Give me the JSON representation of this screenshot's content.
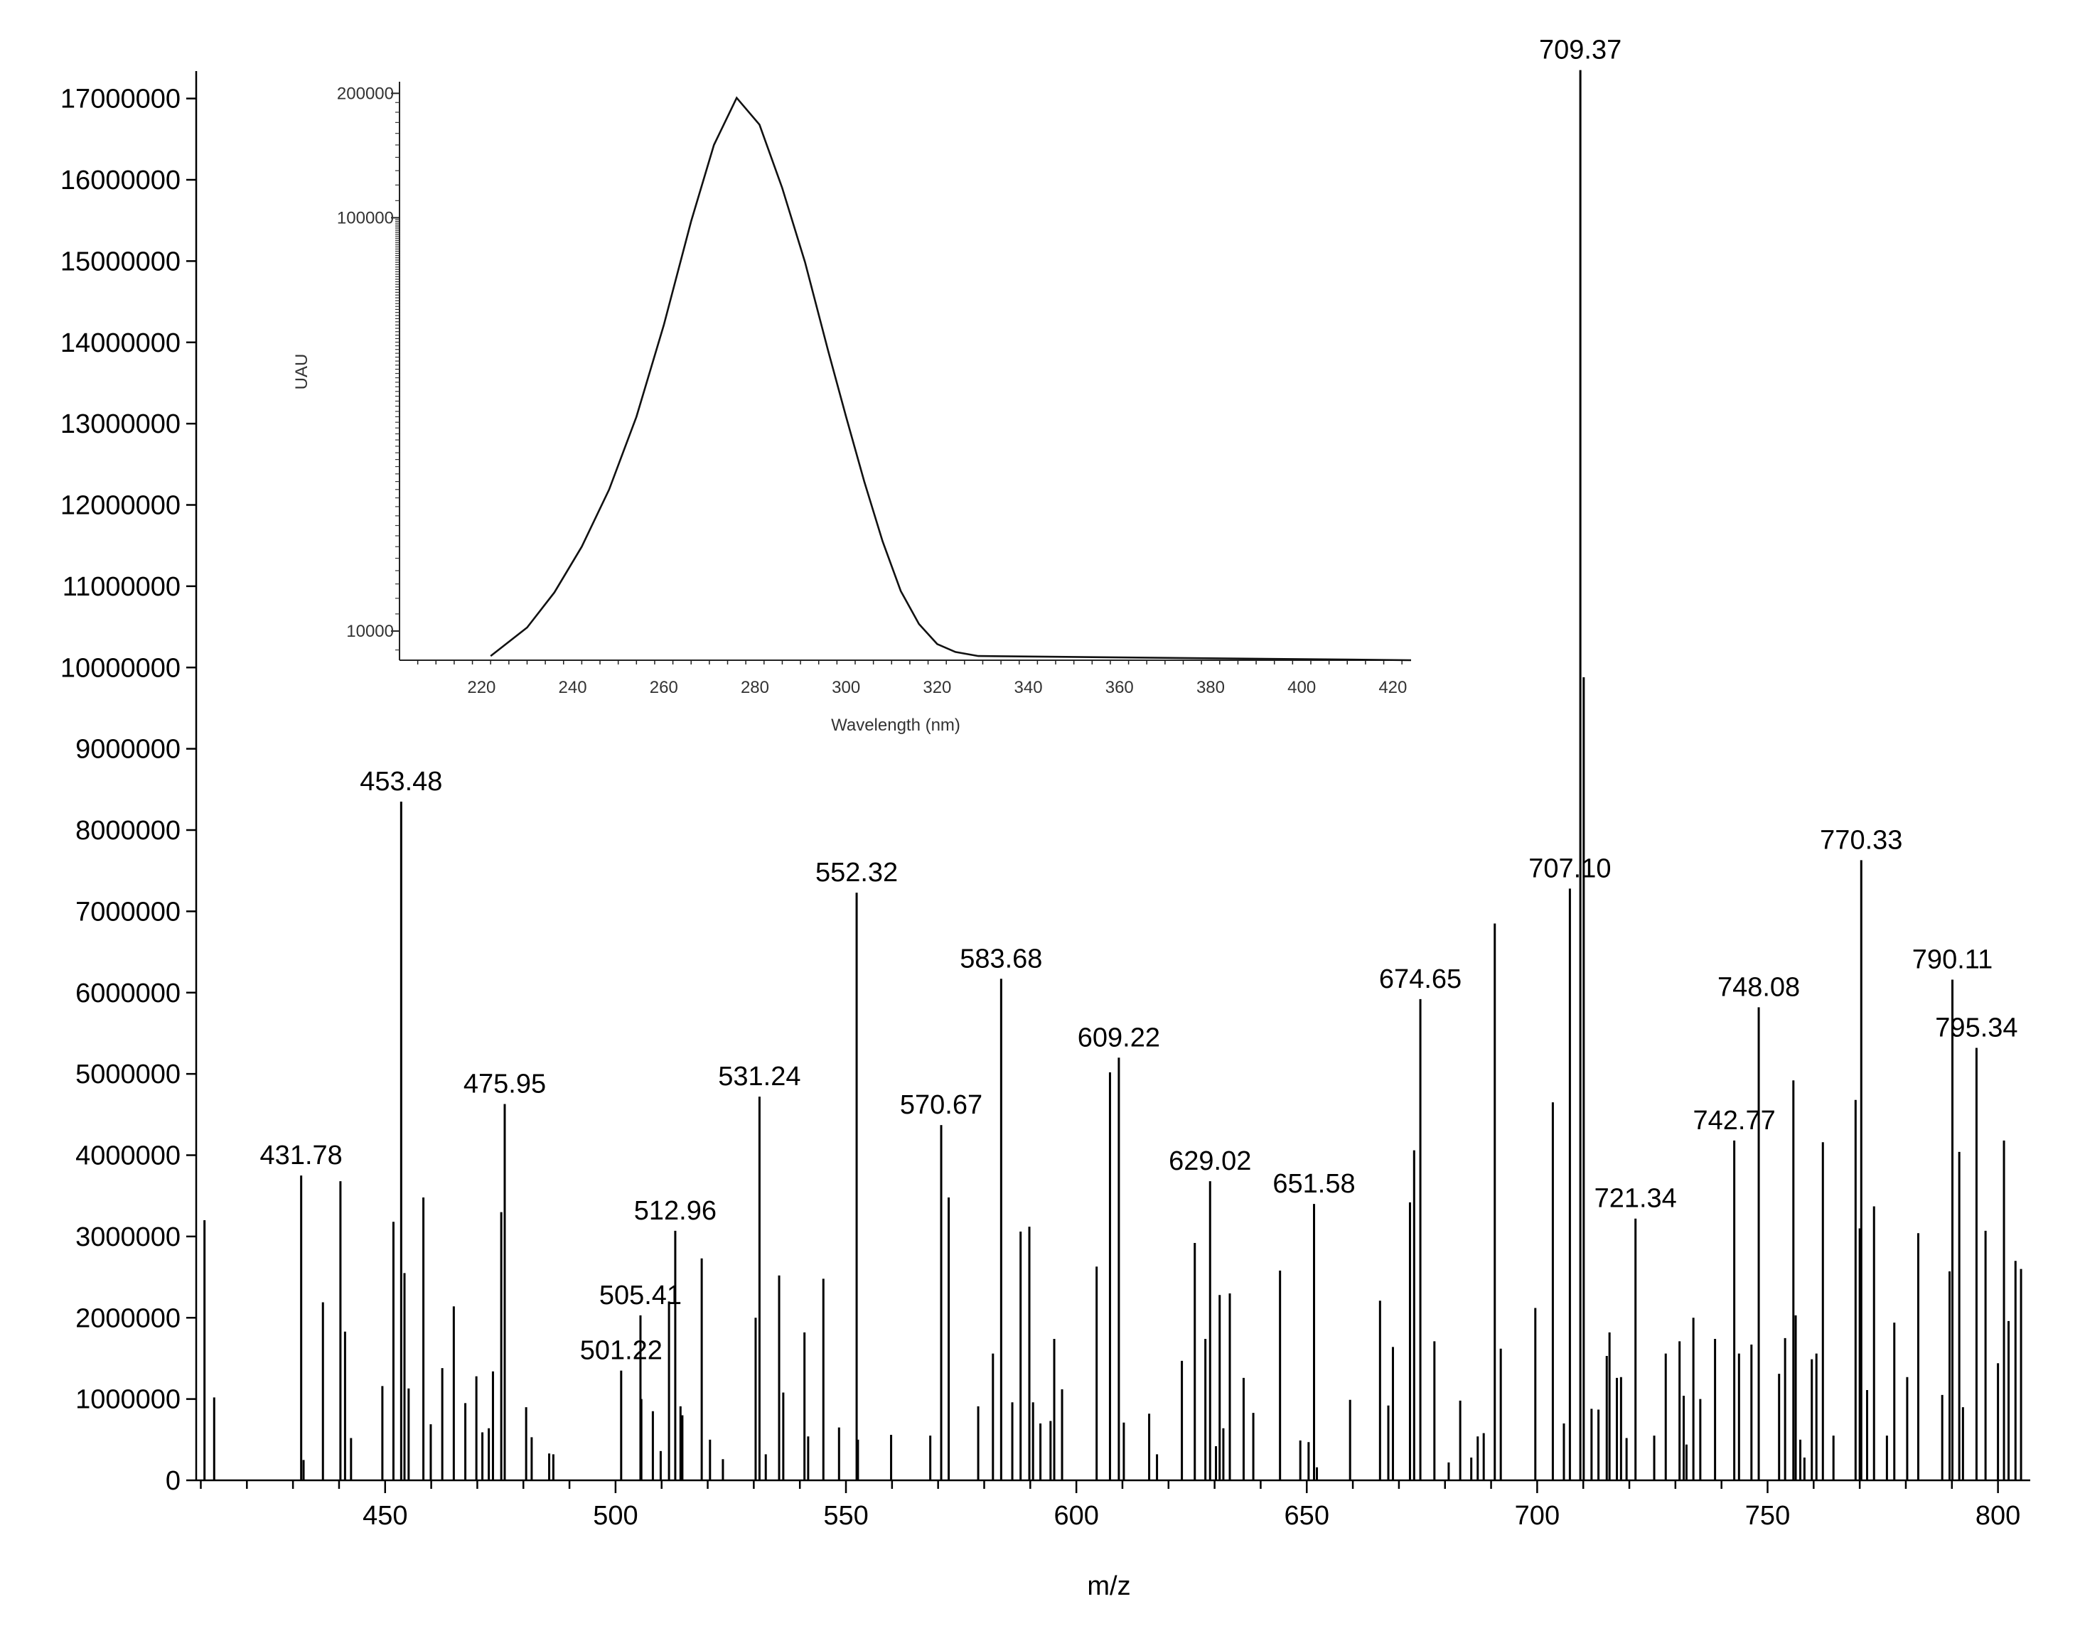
{
  "chart_data": [
    {
      "type": "bar",
      "kind": "mass-spectrum",
      "xlabel": "m/z",
      "ylabel": "",
      "xlim": [
        409,
        807
      ],
      "ylim": [
        0,
        17600000
      ],
      "x_ticks": [
        "450",
        "500",
        "550",
        "600",
        "650",
        "700",
        "750",
        "800"
      ],
      "y_ticks": [
        "0",
        "1000000",
        "2000000",
        "3000000",
        "4000000",
        "5000000",
        "6000000",
        "7000000",
        "8000000",
        "9000000",
        "10000000",
        "11000000",
        "12000000",
        "13000000",
        "14000000",
        "15000000",
        "16000000",
        "17000000"
      ],
      "labeled_peaks": [
        {
          "mz": 431.78,
          "intensity": 3750000,
          "label": "431.78"
        },
        {
          "mz": 453.48,
          "intensity": 8350000,
          "label": "453.48"
        },
        {
          "mz": 475.95,
          "intensity": 4630000,
          "label": "475.95"
        },
        {
          "mz": 501.22,
          "intensity": 1350000,
          "label": "501.22"
        },
        {
          "mz": 505.41,
          "intensity": 2030000,
          "label": "505.41"
        },
        {
          "mz": 512.96,
          "intensity": 3070000,
          "label": "512.96"
        },
        {
          "mz": 531.24,
          "intensity": 4720000,
          "label": "531.24"
        },
        {
          "mz": 552.32,
          "intensity": 7230000,
          "label": "552.32"
        },
        {
          "mz": 570.67,
          "intensity": 4370000,
          "label": "570.67"
        },
        {
          "mz": 583.68,
          "intensity": 6170000,
          "label": "583.68"
        },
        {
          "mz": 609.22,
          "intensity": 5200000,
          "label": "609.22"
        },
        {
          "mz": 629.02,
          "intensity": 3680000,
          "label": "629.02"
        },
        {
          "mz": 651.58,
          "intensity": 3400000,
          "label": "651.58"
        },
        {
          "mz": 674.65,
          "intensity": 5920000,
          "label": "674.65"
        },
        {
          "mz": 707.1,
          "intensity": 7280000,
          "label": "707.10"
        },
        {
          "mz": 709.37,
          "intensity": 17350000,
          "label": "709.37"
        },
        {
          "mz": 721.34,
          "intensity": 3220000,
          "label": "721.34"
        },
        {
          "mz": 742.77,
          "intensity": 4180000,
          "label": "742.77"
        },
        {
          "mz": 748.08,
          "intensity": 5820000,
          "label": "748.08"
        },
        {
          "mz": 770.33,
          "intensity": 7630000,
          "label": "770.33"
        },
        {
          "mz": 790.11,
          "intensity": 6160000,
          "label": "790.11"
        },
        {
          "mz": 795.34,
          "intensity": 5320000,
          "label": "795.34"
        }
      ],
      "other_peaks": [
        [
          410.8,
          3200000
        ],
        [
          412.9,
          1020000
        ],
        [
          432.3,
          250000
        ],
        [
          436.5,
          2190000
        ],
        [
          440.3,
          3680000
        ],
        [
          441.3,
          1830000
        ],
        [
          442.6,
          520000
        ],
        [
          449.4,
          1160000
        ],
        [
          451.8,
          3180000
        ],
        [
          454.2,
          2550000
        ],
        [
          455.1,
          1130000
        ],
        [
          458.3,
          3480000
        ],
        [
          459.9,
          690000
        ],
        [
          462.4,
          1380000
        ],
        [
          464.9,
          2140000
        ],
        [
          467.4,
          950000
        ],
        [
          469.8,
          1280000
        ],
        [
          471.1,
          590000
        ],
        [
          472.5,
          640000
        ],
        [
          473.4,
          1340000
        ],
        [
          475.2,
          3300000
        ],
        [
          480.6,
          900000
        ],
        [
          481.8,
          530000
        ],
        [
          485.6,
          330000
        ],
        [
          486.5,
          320000
        ],
        [
          505.6,
          1000000
        ],
        [
          508.1,
          850000
        ],
        [
          509.8,
          360000
        ],
        [
          511.6,
          2200000
        ],
        [
          514.1,
          910000
        ],
        [
          514.5,
          800000
        ],
        [
          518.7,
          2730000
        ],
        [
          520.5,
          500000
        ],
        [
          523.3,
          260000
        ],
        [
          530.4,
          2000000
        ],
        [
          532.6,
          320000
        ],
        [
          535.5,
          2520000
        ],
        [
          536.4,
          1080000
        ],
        [
          541.0,
          1820000
        ],
        [
          541.8,
          540000
        ],
        [
          545.1,
          2480000
        ],
        [
          548.5,
          650000
        ],
        [
          552.6,
          500000
        ],
        [
          559.8,
          560000
        ],
        [
          568.3,
          550000
        ],
        [
          572.3,
          3480000
        ],
        [
          578.7,
          910000
        ],
        [
          581.9,
          1560000
        ],
        [
          586.1,
          960000
        ],
        [
          587.9,
          3060000
        ],
        [
          589.8,
          3120000
        ],
        [
          590.6,
          960000
        ],
        [
          592.2,
          700000
        ],
        [
          594.4,
          730000
        ],
        [
          595.2,
          1740000
        ],
        [
          596.9,
          1120000
        ],
        [
          604.4,
          2630000
        ],
        [
          607.3,
          5020000
        ],
        [
          610.3,
          710000
        ],
        [
          615.8,
          820000
        ],
        [
          617.5,
          320000
        ],
        [
          622.9,
          1470000
        ],
        [
          625.7,
          2920000
        ],
        [
          628.0,
          1740000
        ],
        [
          630.3,
          420000
        ],
        [
          631.1,
          2280000
        ],
        [
          631.9,
          640000
        ],
        [
          633.3,
          2300000
        ],
        [
          636.3,
          1260000
        ],
        [
          638.4,
          830000
        ],
        [
          644.2,
          2580000
        ],
        [
          648.6,
          490000
        ],
        [
          650.4,
          470000
        ],
        [
          652.2,
          160000
        ],
        [
          659.4,
          990000
        ],
        [
          665.9,
          2210000
        ],
        [
          667.7,
          920000
        ],
        [
          668.7,
          1640000
        ],
        [
          672.4,
          3420000
        ],
        [
          673.3,
          4060000
        ],
        [
          677.7,
          1710000
        ],
        [
          680.8,
          220000
        ],
        [
          683.3,
          980000
        ],
        [
          685.7,
          280000
        ],
        [
          687.1,
          540000
        ],
        [
          688.4,
          580000
        ],
        [
          690.8,
          6850000
        ],
        [
          692.1,
          1620000
        ],
        [
          699.6,
          2120000
        ],
        [
          703.4,
          4650000
        ],
        [
          705.8,
          700000
        ],
        [
          710.1,
          9880000
        ],
        [
          711.8,
          880000
        ],
        [
          713.3,
          870000
        ],
        [
          715.1,
          1530000
        ],
        [
          715.7,
          1820000
        ],
        [
          717.3,
          1260000
        ],
        [
          718.2,
          1270000
        ],
        [
          719.4,
          520000
        ],
        [
          725.4,
          550000
        ],
        [
          727.9,
          1560000
        ],
        [
          730.9,
          1710000
        ],
        [
          731.8,
          1040000
        ],
        [
          732.4,
          440000
        ],
        [
          733.9,
          2000000
        ],
        [
          735.4,
          1000000
        ],
        [
          738.6,
          1740000
        ],
        [
          743.8,
          1560000
        ],
        [
          746.5,
          1670000
        ],
        [
          752.5,
          1310000
        ],
        [
          753.8,
          1750000
        ],
        [
          755.6,
          4920000
        ],
        [
          756.1,
          2030000
        ],
        [
          757.1,
          500000
        ],
        [
          758.0,
          280000
        ],
        [
          759.6,
          1490000
        ],
        [
          760.6,
          1560000
        ],
        [
          762.0,
          4160000
        ],
        [
          764.3,
          550000
        ],
        [
          769.1,
          4680000
        ],
        [
          770.0,
          3100000
        ],
        [
          771.6,
          1110000
        ],
        [
          773.1,
          3370000
        ],
        [
          775.9,
          550000
        ],
        [
          777.5,
          1940000
        ],
        [
          780.3,
          1270000
        ],
        [
          782.7,
          3040000
        ],
        [
          787.9,
          1050000
        ],
        [
          789.5,
          2570000
        ],
        [
          791.6,
          4040000
        ],
        [
          792.4,
          900000
        ],
        [
          797.3,
          3070000
        ],
        [
          800.0,
          1440000
        ],
        [
          801.3,
          4180000
        ],
        [
          802.3,
          1960000
        ],
        [
          803.8,
          2700000
        ],
        [
          805.0,
          2600000
        ]
      ]
    },
    {
      "type": "line",
      "kind": "uv-spectrum-inset",
      "xlabel": "Wavelength (nm)",
      "ylabel": "UAU",
      "xlim": [
        202,
        424
      ],
      "y_scale": "log",
      "ylim": [
        8500,
        210000
      ],
      "x_ticks": [
        "220",
        "240",
        "260",
        "280",
        "300",
        "320",
        "340",
        "360",
        "380",
        "400",
        "420"
      ],
      "y_ticks": [
        {
          "value": 10000,
          "label": "10000"
        },
        {
          "value": 100000,
          "label": "100000"
        },
        {
          "value": 200000,
          "label": "200000"
        }
      ],
      "x": [
        222,
        230,
        236,
        242,
        248,
        254,
        260,
        266,
        271,
        276,
        281,
        286,
        291,
        296,
        300,
        304,
        308,
        312,
        316,
        320,
        324,
        329
      ],
      "y": [
        8700,
        10200,
        12400,
        16000,
        22000,
        33000,
        55000,
        98000,
        150000,
        195000,
        168000,
        118000,
        78000,
        48000,
        33000,
        23000,
        16500,
        12500,
        10400,
        9300,
        8900,
        8700
      ]
    }
  ]
}
